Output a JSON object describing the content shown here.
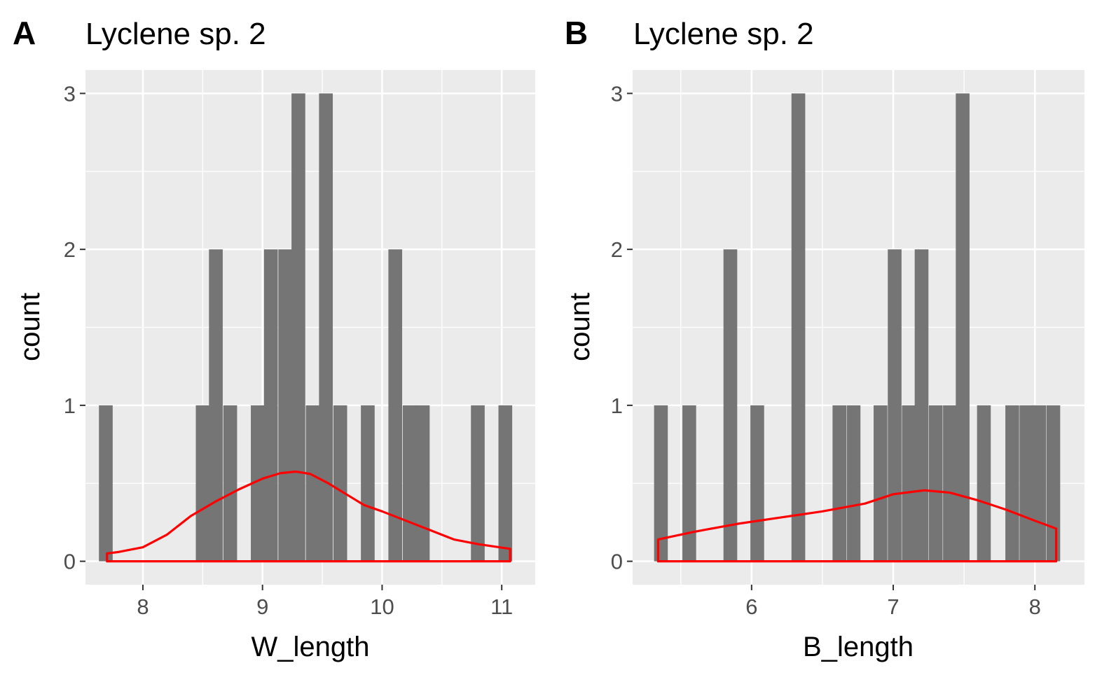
{
  "chart_data": [
    {
      "type": "bar",
      "tag": "A",
      "title": "Lyclene sp. 2",
      "xlabel": "W_length",
      "ylabel": "count",
      "xlim": [
        7.52,
        11.28
      ],
      "ylim": [
        -0.15,
        3.15
      ],
      "x_ticks": [
        {
          "value": 8,
          "label": "8"
        },
        {
          "value": 9,
          "label": "9"
        },
        {
          "value": 10,
          "label": "10"
        },
        {
          "value": 11,
          "label": "11"
        }
      ],
      "y_ticks": [
        {
          "value": 0,
          "label": "0"
        },
        {
          "value": 1,
          "label": "1"
        },
        {
          "value": 2,
          "label": "2"
        },
        {
          "value": 3,
          "label": "3"
        }
      ],
      "bin_width": 0.115,
      "bins": [
        {
          "x": 7.69,
          "count": 1
        },
        {
          "x": 8.5,
          "count": 1
        },
        {
          "x": 8.61,
          "count": 2
        },
        {
          "x": 8.73,
          "count": 1
        },
        {
          "x": 8.96,
          "count": 1
        },
        {
          "x": 9.07,
          "count": 2
        },
        {
          "x": 9.19,
          "count": 2
        },
        {
          "x": 9.3,
          "count": 3
        },
        {
          "x": 9.42,
          "count": 1
        },
        {
          "x": 9.53,
          "count": 3
        },
        {
          "x": 9.65,
          "count": 1
        },
        {
          "x": 9.88,
          "count": 1
        },
        {
          "x": 10.11,
          "count": 2
        },
        {
          "x": 10.23,
          "count": 1
        },
        {
          "x": 10.34,
          "count": 1
        },
        {
          "x": 10.8,
          "count": 1
        },
        {
          "x": 11.03,
          "count": 1
        }
      ],
      "density": {
        "x": [
          7.7,
          7.8,
          8.0,
          8.2,
          8.4,
          8.6,
          8.8,
          9.0,
          9.15,
          9.28,
          9.4,
          9.55,
          9.7,
          9.85,
          10.0,
          10.2,
          10.4,
          10.6,
          10.8,
          11.07
        ],
        "y": [
          0.05,
          0.06,
          0.09,
          0.17,
          0.29,
          0.38,
          0.46,
          0.53,
          0.565,
          0.575,
          0.56,
          0.5,
          0.43,
          0.36,
          0.32,
          0.26,
          0.2,
          0.14,
          0.11,
          0.08
        ]
      },
      "colors": {
        "bar": "#757575",
        "density": "#ff0000",
        "panel": "#ebebeb",
        "grid": "#ffffff"
      }
    },
    {
      "type": "bar",
      "tag": "B",
      "title": "Lyclene sp. 2",
      "xlabel": "B_length",
      "ylabel": "count",
      "xlim": [
        5.16,
        8.35
      ],
      "ylim": [
        -0.15,
        3.15
      ],
      "x_ticks": [
        {
          "value": 6,
          "label": "6"
        },
        {
          "value": 7,
          "label": "7"
        },
        {
          "value": 8,
          "label": "8"
        }
      ],
      "y_ticks": [
        {
          "value": 0,
          "label": "0"
        },
        {
          "value": 1,
          "label": "1"
        },
        {
          "value": 2,
          "label": "2"
        },
        {
          "value": 3,
          "label": "3"
        }
      ],
      "bin_width": 0.097,
      "bins": [
        {
          "x": 5.36,
          "count": 1
        },
        {
          "x": 5.56,
          "count": 1
        },
        {
          "x": 5.85,
          "count": 2
        },
        {
          "x": 6.04,
          "count": 1
        },
        {
          "x": 6.33,
          "count": 3
        },
        {
          "x": 6.62,
          "count": 1
        },
        {
          "x": 6.72,
          "count": 1
        },
        {
          "x": 6.91,
          "count": 1
        },
        {
          "x": 7.01,
          "count": 2
        },
        {
          "x": 7.11,
          "count": 1
        },
        {
          "x": 7.2,
          "count": 2
        },
        {
          "x": 7.3,
          "count": 1
        },
        {
          "x": 7.4,
          "count": 1
        },
        {
          "x": 7.49,
          "count": 3
        },
        {
          "x": 7.64,
          "count": 1
        },
        {
          "x": 7.84,
          "count": 1
        },
        {
          "x": 7.94,
          "count": 1
        },
        {
          "x": 8.03,
          "count": 1
        },
        {
          "x": 8.13,
          "count": 1
        }
      ],
      "density": {
        "x": [
          5.34,
          5.6,
          5.9,
          6.2,
          6.5,
          6.8,
          7.0,
          7.22,
          7.4,
          7.6,
          7.8,
          8.0,
          8.15
        ],
        "y": [
          0.14,
          0.19,
          0.24,
          0.28,
          0.32,
          0.37,
          0.43,
          0.455,
          0.44,
          0.39,
          0.33,
          0.26,
          0.21
        ]
      },
      "colors": {
        "bar": "#757575",
        "density": "#ff0000",
        "panel": "#ebebeb",
        "grid": "#ffffff"
      }
    }
  ]
}
